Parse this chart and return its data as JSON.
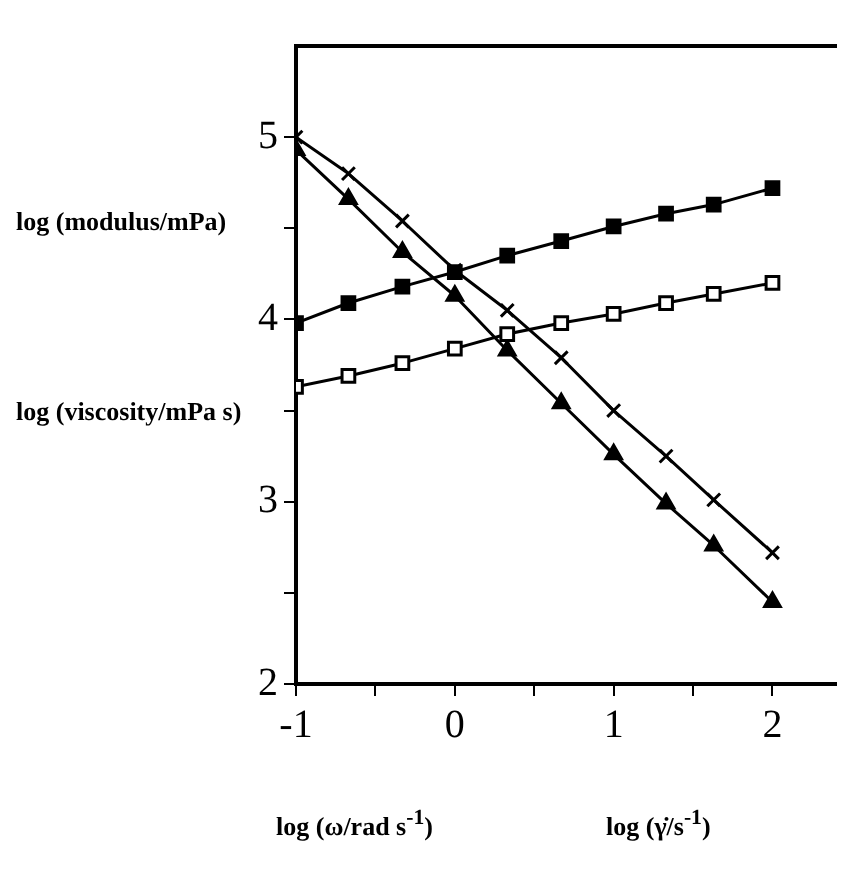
{
  "chart_data": {
    "type": "line",
    "xlabel": "log (ω/rad s$^{-1}$)",
    "ylabel": "log (modulus/mPa)",
    "annotations": [
      "log (viscosity/mPa s)",
      "log (γ̇/s$^{-1}$)"
    ],
    "x": [
      -1,
      -0.67,
      -0.33,
      0,
      0.33,
      0.67,
      1,
      1.33,
      1.63,
      2
    ],
    "series": [
      {
        "color": "#000000",
        "marker": "square",
        "values": [
          3.98,
          4.09,
          4.18,
          4.26,
          4.35,
          4.43,
          4.51,
          4.58,
          4.63,
          4.72
        ]
      },
      {
        "color": "#ffffff",
        "marker": "square",
        "values": [
          3.63,
          3.69,
          3.76,
          3.84,
          3.92,
          3.98,
          4.03,
          4.09,
          4.14,
          4.2
        ]
      },
      {
        "color": "#000000",
        "marker": "cross",
        "values": [
          5.0,
          4.8,
          4.54,
          4.27,
          4.05,
          3.79,
          3.5,
          3.25,
          3.01,
          2.72
        ]
      },
      {
        "color": "#000000",
        "marker": "triangle",
        "values": [
          4.93,
          4.66,
          4.37,
          4.13,
          3.83,
          3.54,
          3.26,
          2.99,
          2.76,
          2.45
        ]
      }
    ],
    "xlim": [
      -1,
      2.4
    ],
    "ylim": [
      2,
      5.5
    ],
    "xticks": [
      -1,
      {
        "value": -0.5,
        "label": null
      },
      0,
      {
        "value": 0.5,
        "label": null
      },
      1,
      {
        "value": 1.5,
        "label": null
      },
      2
    ],
    "yticks": [
      2,
      {
        "value": 2.5,
        "label": null
      },
      3,
      {
        "value": 3.5,
        "label": null
      },
      4,
      {
        "value": 4.5,
        "label": null
      },
      5
    ],
    "grid": false,
    "legend": false,
    "line_style": "solid"
  }
}
